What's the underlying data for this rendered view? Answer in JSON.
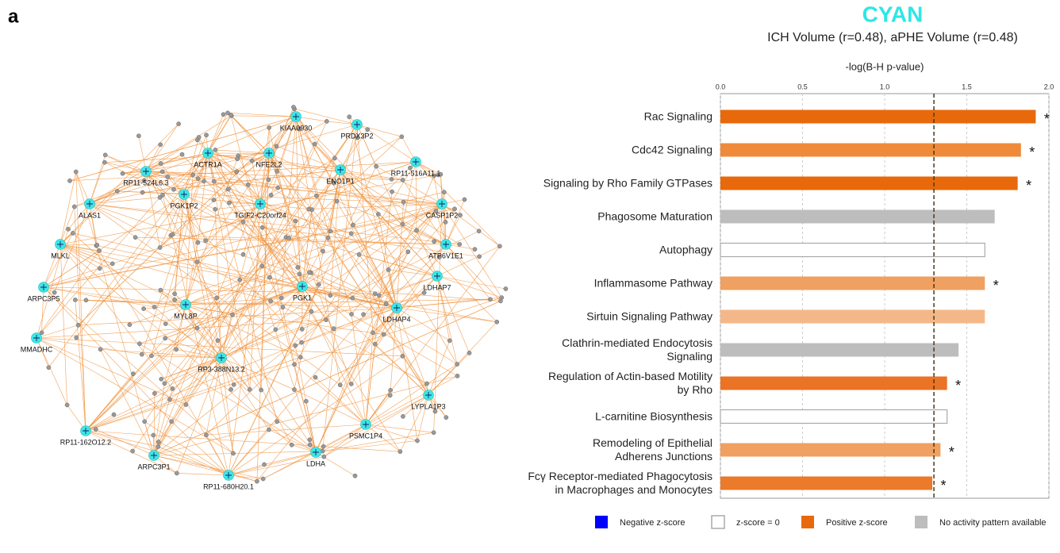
{
  "panel_label": "a",
  "network": {
    "hubs": [
      "KIAA0930",
      "PRDX3P2",
      "ACTR1A",
      "NFE2L2",
      "RP11-524L6.3",
      "ENO1P1",
      "RP11-516A11.1",
      "ALAS1",
      "PGK1P2",
      "TGIF2-C20orf24",
      "CASP1P2",
      "MLKL",
      "ATP6V1E1",
      "ARPC3P5",
      "PGK1",
      "LDHAP7",
      "MYL8P",
      "LDHAP4",
      "MMADHC",
      "RP3-388N13.2",
      "LYPLA1P3",
      "RP11-162O12.2",
      "PSMC1P4",
      "LDHA",
      "ARPC3P1",
      "RP11-680H20.1"
    ],
    "hub_color": "#3ee6e6",
    "edge_color": "#f0913a"
  },
  "chart_data": {
    "type": "hbar",
    "title": "CYAN",
    "subtitle": "ICH Volume (r=0.48), aPHE Volume (r=0.48)",
    "x_label": "-log(B-H p-value)",
    "categories": [
      "Rac Signaling",
      "Cdc42 Signaling",
      "Signaling by Rho Family GTPases",
      "Phagosome Maturation",
      "Autophagy",
      "Inflammasome Pathway",
      "Sirtuin Signaling Pathway",
      "Clathrin-mediated Endocytosis\nSignaling",
      "Regulation of Actin-based Motility\nby Rho",
      "L-carnitine Biosynthesis",
      "Remodeling of Epithelial\nAdherens Junctions",
      "Fcγ Receptor-mediated Phagocytosis\nin Macrophages and Monocytes"
    ],
    "values": [
      1.92,
      1.83,
      1.81,
      1.67,
      1.61,
      1.61,
      1.61,
      1.45,
      1.38,
      1.38,
      1.34,
      1.29
    ],
    "colors": [
      "#e8690b",
      "#ef8a3a",
      "#e8690b",
      "#bdbdbd",
      "#ffffff",
      "#f0a060",
      "#f4b888",
      "#bdbdbd",
      "#ea7325",
      "#ffffff",
      "#f0a060",
      "#eb7a2a"
    ],
    "significance": [
      "*",
      "*",
      "*",
      null,
      null,
      "*",
      null,
      null,
      "*",
      null,
      "*",
      "*"
    ],
    "threshold": 1.3,
    "xlim": [
      0,
      2.0
    ],
    "xticks": [
      {
        "value": 0,
        "label": "0.0"
      },
      0.5,
      {
        "value": 1,
        "label": "1.0"
      },
      1.5,
      {
        "value": 2,
        "label": "2.0"
      }
    ],
    "grid": true,
    "legend": [
      {
        "name": "Negative z-score",
        "color": "#0000ff"
      },
      {
        "name": "z-score = 0",
        "color": "#ffffff"
      },
      {
        "name": "Positive z-score",
        "color": "#e8690b"
      },
      {
        "name": "No activity pattern available",
        "color": "#bdbdbd"
      }
    ]
  }
}
